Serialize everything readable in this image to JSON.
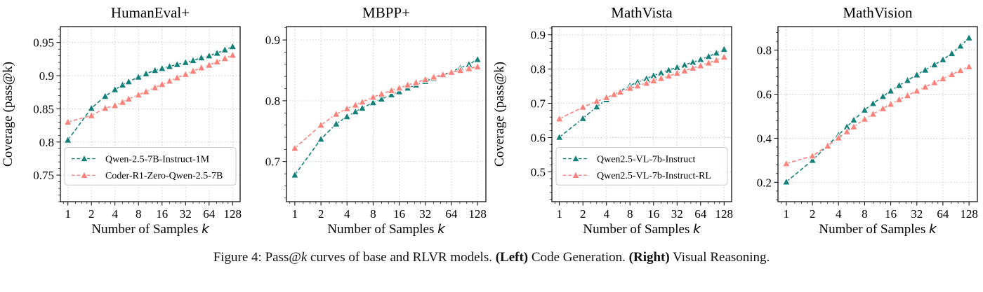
{
  "figure": {
    "caption_segments": [
      {
        "text": "Figure 4: Pass@",
        "style": "normal"
      },
      {
        "text": "k",
        "style": "italic"
      },
      {
        "text": " curves of base and RLVR models. ",
        "style": "normal"
      },
      {
        "text": "(Left)",
        "style": "bold"
      },
      {
        "text": " Code Generation. ",
        "style": "normal"
      },
      {
        "text": "(Right)",
        "style": "bold"
      },
      {
        "text": " Visual Reasoning.",
        "style": "normal"
      }
    ]
  },
  "colors": {
    "teal": "#15807a",
    "salmon": "#f9827b",
    "grid": "#c7c7c7",
    "axis": "#000000",
    "legend_border": "#cccccc"
  },
  "chart_data": [
    {
      "type": "line",
      "title": "HumanEval+",
      "xlabel": "Number of Samples",
      "xlabel_var": "k",
      "ylabel": "Coverage (pass@k)",
      "xscale": "log2",
      "grid": true,
      "legend": true,
      "legend_position": "lower left",
      "x": [
        1,
        2,
        3,
        4,
        5,
        6,
        8,
        10,
        13,
        16,
        20,
        25,
        32,
        40,
        51,
        64,
        81,
        102,
        128
      ],
      "xtick_values": [
        1,
        2,
        4,
        8,
        16,
        32,
        64,
        128
      ],
      "xtick_labels": [
        "1",
        "2",
        "4",
        "8",
        "16",
        "32",
        "64",
        "128"
      ],
      "ytick_values": [
        0.75,
        0.8,
        0.85,
        0.9,
        0.95
      ],
      "ytick_labels": [
        "0.75",
        "0.8",
        "0.85",
        "0.9",
        "0.95"
      ],
      "ylim": [
        0.71,
        0.974
      ],
      "xlim_log2": [
        -0.32,
        7.32
      ],
      "series": [
        {
          "name": "Qwen-2.5-7B-Instruct-1M",
          "color": "#15807a",
          "marker": "triangle-up",
          "linestyle": "dashed",
          "values": [
            0.803,
            0.851,
            0.869,
            0.879,
            0.886,
            0.891,
            0.898,
            0.903,
            0.908,
            0.911,
            0.914,
            0.917,
            0.92,
            0.923,
            0.927,
            0.93,
            0.934,
            0.939,
            0.944
          ]
        },
        {
          "name": "Coder-R1-Zero-Qwen-2.5-7B",
          "color": "#f9827b",
          "marker": "triangle-up",
          "linestyle": "dashed",
          "values": [
            0.83,
            0.84,
            0.851,
            0.855,
            0.86,
            0.865,
            0.871,
            0.876,
            0.882,
            0.887,
            0.892,
            0.897,
            0.902,
            0.907,
            0.912,
            0.916,
            0.921,
            0.926,
            0.931
          ]
        }
      ]
    },
    {
      "type": "line",
      "title": "MBPP+",
      "xlabel": "Number of Samples",
      "xlabel_var": "k",
      "ylabel": "",
      "xscale": "log2",
      "grid": true,
      "legend": false,
      "x": [
        1,
        2,
        3,
        4,
        5,
        6,
        8,
        10,
        13,
        16,
        20,
        25,
        32,
        40,
        51,
        64,
        81,
        102,
        128
      ],
      "xtick_values": [
        1,
        2,
        4,
        8,
        16,
        32,
        64,
        128
      ],
      "xtick_labels": [
        "1",
        "2",
        "4",
        "8",
        "16",
        "32",
        "64",
        "128"
      ],
      "ytick_values": [
        0.7,
        0.8,
        0.9
      ],
      "ytick_labels": [
        "0.7",
        "0.8",
        "0.9"
      ],
      "ylim": [
        0.634,
        0.922
      ],
      "xlim_log2": [
        -0.32,
        7.32
      ],
      "series": [
        {
          "name": "Qwen-2.5-7B-Instruct-1M",
          "color": "#15807a",
          "marker": "triangle-up",
          "linestyle": "dashed",
          "values": [
            0.678,
            0.737,
            0.762,
            0.774,
            0.782,
            0.788,
            0.797,
            0.803,
            0.81,
            0.815,
            0.821,
            0.826,
            0.832,
            0.837,
            0.842,
            0.848,
            0.854,
            0.86,
            0.868
          ]
        },
        {
          "name": "Coder-R1-Zero-Qwen-2.5-7B",
          "color": "#f9827b",
          "marker": "triangle-up",
          "linestyle": "dashed",
          "values": [
            0.722,
            0.76,
            0.778,
            0.787,
            0.793,
            0.798,
            0.806,
            0.811,
            0.817,
            0.821,
            0.826,
            0.83,
            0.835,
            0.839,
            0.843,
            0.847,
            0.85,
            0.853,
            0.856
          ]
        }
      ]
    },
    {
      "type": "line",
      "title": "MathVista",
      "xlabel": "Number of Samples",
      "xlabel_var": "k",
      "ylabel": "Coverage (pass@k)",
      "xscale": "log2",
      "grid": true,
      "legend": true,
      "legend_position": "lower left",
      "x": [
        1,
        2,
        3,
        4,
        5,
        6,
        8,
        10,
        13,
        16,
        20,
        25,
        32,
        40,
        51,
        64,
        81,
        102,
        128
      ],
      "xtick_values": [
        1,
        2,
        4,
        8,
        16,
        32,
        64,
        128
      ],
      "xtick_labels": [
        "1",
        "2",
        "4",
        "8",
        "16",
        "32",
        "64",
        "128"
      ],
      "ytick_values": [
        0.5,
        0.6,
        0.7,
        0.8,
        0.9
      ],
      "ytick_labels": [
        "0.5",
        "0.6",
        "0.7",
        "0.8",
        "0.9"
      ],
      "ylim": [
        0.413,
        0.924
      ],
      "xlim_log2": [
        -0.32,
        7.32
      ],
      "series": [
        {
          "name": "Qwen2.5-VL-7b-Instruct",
          "color": "#15807a",
          "marker": "triangle-up",
          "linestyle": "dashed",
          "values": [
            0.601,
            0.656,
            0.69,
            0.711,
            0.725,
            0.736,
            0.752,
            0.762,
            0.772,
            0.781,
            0.789,
            0.797,
            0.805,
            0.812,
            0.82,
            0.828,
            0.837,
            0.847,
            0.858
          ]
        },
        {
          "name": "Qwen2.5-VL-7b-Instruct-RL",
          "color": "#f9827b",
          "marker": "triangle-up",
          "linestyle": "dashed",
          "values": [
            0.655,
            0.689,
            0.706,
            0.717,
            0.726,
            0.733,
            0.744,
            0.751,
            0.759,
            0.766,
            0.773,
            0.78,
            0.788,
            0.795,
            0.803,
            0.81,
            0.818,
            0.826,
            0.835
          ]
        }
      ]
    },
    {
      "type": "line",
      "title": "MathVision",
      "xlabel": "Number of Samples",
      "xlabel_var": "k",
      "ylabel": "",
      "xscale": "log2",
      "grid": true,
      "legend": false,
      "x": [
        1,
        2,
        3,
        4,
        5,
        6,
        8,
        10,
        13,
        16,
        20,
        25,
        32,
        40,
        51,
        64,
        81,
        102,
        128
      ],
      "xtick_values": [
        1,
        2,
        4,
        8,
        16,
        32,
        64,
        128
      ],
      "xtick_labels": [
        "1",
        "2",
        "4",
        "8",
        "16",
        "32",
        "64",
        "128"
      ],
      "ytick_values": [
        0.2,
        0.4,
        0.6,
        0.8
      ],
      "ytick_labels": [
        "0.2",
        "0.4",
        "0.6",
        "0.8"
      ],
      "ylim": [
        0.112,
        0.907
      ],
      "xlim_log2": [
        -0.32,
        7.32
      ],
      "series": [
        {
          "name": "Qwen2.5-VL-7b-Instruct",
          "color": "#15807a",
          "marker": "triangle-up",
          "linestyle": "dashed",
          "values": [
            0.202,
            0.3,
            0.368,
            0.415,
            0.452,
            0.483,
            0.528,
            0.558,
            0.59,
            0.615,
            0.64,
            0.663,
            0.688,
            0.71,
            0.734,
            0.757,
            0.785,
            0.819,
            0.856
          ]
        },
        {
          "name": "Qwen2.5-VL-7b-Instruct-RL",
          "color": "#f9827b",
          "marker": "triangle-up",
          "linestyle": "dashed",
          "values": [
            0.285,
            0.32,
            0.365,
            0.402,
            0.43,
            0.452,
            0.487,
            0.51,
            0.535,
            0.555,
            0.576,
            0.594,
            0.615,
            0.633,
            0.653,
            0.671,
            0.69,
            0.708,
            0.725
          ]
        }
      ]
    }
  ]
}
